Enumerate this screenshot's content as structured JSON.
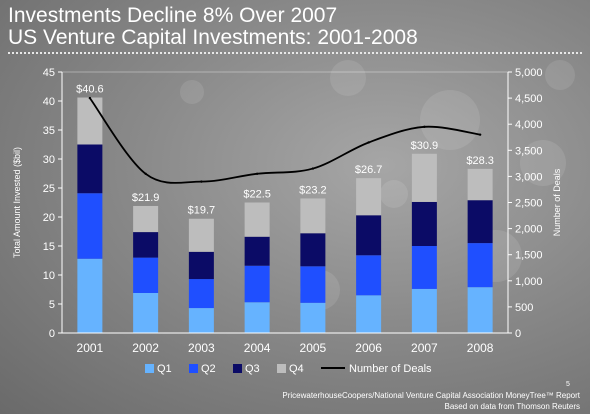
{
  "slide": {
    "title_line1": "Investments Decline 8% Over 2007",
    "title_line2": "US Venture Capital Investments: 2001-2008",
    "page_number": "5",
    "source_line1": "PricewaterhouseCoopers/National Venture Capital Association MoneyTree™ Report",
    "source_line2": "Based on data from Thomson Reuters"
  },
  "chart_data": {
    "type": "bar",
    "stacked": true,
    "categories": [
      "2001",
      "2002",
      "2003",
      "2004",
      "2005",
      "2006",
      "2007",
      "2008"
    ],
    "series": [
      {
        "name": "Q1",
        "color": "#66b3ff",
        "values": [
          12.8,
          6.9,
          4.3,
          5.3,
          5.2,
          6.5,
          7.6,
          7.9
        ]
      },
      {
        "name": "Q2",
        "color": "#1f4fff",
        "values": [
          11.3,
          6.1,
          5.0,
          6.3,
          6.3,
          6.9,
          7.4,
          7.6
        ]
      },
      {
        "name": "Q3",
        "color": "#0b0b66",
        "values": [
          8.4,
          4.4,
          4.7,
          5.0,
          5.7,
          6.9,
          7.6,
          7.4
        ]
      },
      {
        "name": "Q4",
        "color": "#bdbdbd",
        "values": [
          8.1,
          4.5,
          5.7,
          5.9,
          6.0,
          6.4,
          8.3,
          5.4
        ]
      }
    ],
    "totals_labels": [
      "$40.6",
      "$21.9",
      "$19.7",
      "$22.5",
      "$23.2",
      "$26.7",
      "$30.9",
      "$28.3"
    ],
    "line_series": {
      "name": "Number of Deals",
      "color": "#000000",
      "values": [
        4500,
        3050,
        2900,
        3050,
        3150,
        3650,
        3950,
        3800
      ]
    },
    "ylabel": "Total Amount Invested ($bil)",
    "y2label": "Number of Deals",
    "ylim": [
      0,
      45
    ],
    "y2lim": [
      0,
      5000
    ],
    "yticks": [
      "0",
      "5",
      "10",
      "15",
      "20",
      "25",
      "30",
      "35",
      "40",
      "45"
    ],
    "y2ticks": [
      "0",
      "500",
      "1,000",
      "1,500",
      "2,000",
      "2,500",
      "3,000",
      "3,500",
      "4,000",
      "4,500",
      "5,000"
    ],
    "legend_position": "bottom"
  }
}
